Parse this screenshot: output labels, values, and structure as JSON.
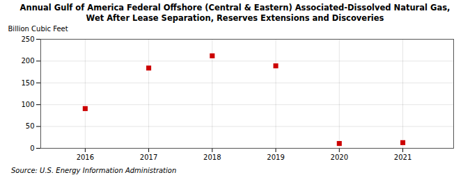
{
  "chart_data": {
    "type": "scatter",
    "title": "Annual Gulf of America Federal Offshore (Central & Eastern) Associated-Dissolved Natural Gas,",
    "subtitle": "Wet After Lease Separation, Reserves Extensions and Discoveries",
    "ylabel": "Billion Cubic Feet",
    "caption": "Source: U.S. Energy Information Administration",
    "x": [
      2016,
      2017,
      2018,
      2019,
      2020,
      2021
    ],
    "values": [
      91,
      184,
      212,
      189,
      11,
      13
    ],
    "xlim": [
      2015.3,
      2021.8
    ],
    "xticks": [
      2016,
      2017,
      2018,
      2019,
      2020,
      2021
    ],
    "ylim": [
      0,
      250
    ],
    "yticks": [
      0,
      50,
      100,
      150,
      200,
      250
    ],
    "color": "#cc0000",
    "marker": "square",
    "grid": true
  }
}
